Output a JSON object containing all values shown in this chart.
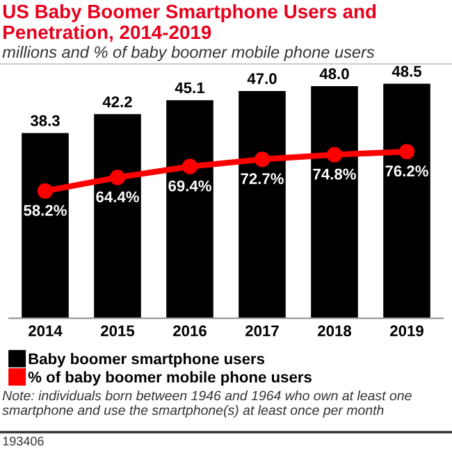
{
  "chart_data": {
    "type": "bar",
    "title": "US Baby Boomer Smartphone Users and Penetration, 2014-2019",
    "subtitle": "millions and % of baby boomer mobile phone users",
    "categories": [
      "2014",
      "2015",
      "2016",
      "2017",
      "2018",
      "2019"
    ],
    "series": [
      {
        "name": "Baby boomer smartphone users",
        "color": "#000000",
        "values": [
          38.3,
          42.2,
          45.1,
          47.0,
          48.0,
          48.5
        ],
        "value_labels": [
          "38.3",
          "42.2",
          "45.1",
          "47.0",
          "48.0",
          "48.5"
        ]
      },
      {
        "name": "% of baby boomer mobile phone users",
        "type": "line",
        "axis": "y2",
        "color": "#ff0000",
        "marker": "circle",
        "values": [
          58.2,
          64.4,
          69.4,
          72.7,
          74.8,
          76.2
        ],
        "value_labels": [
          "58.2%",
          "64.4%",
          "69.4%",
          "72.7%",
          "74.8%",
          "76.2%"
        ]
      }
    ],
    "ylim": [
      0,
      52
    ],
    "y2lim": [
      0,
      115
    ],
    "tick_labels": "x",
    "grid": false,
    "legend": "bottom",
    "annotations": [
      "Note: individuals born between 1946 and 1964 who own at least one smartphone and use the smartphone(s) at least once per month",
      "193406"
    ]
  }
}
